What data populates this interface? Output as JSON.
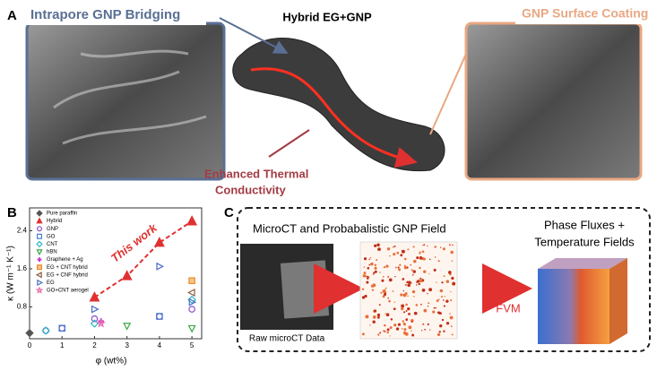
{
  "panel_a": {
    "label": "A",
    "left_title": "Intrapore GNP Bridging",
    "center_title": "Hybrid EG+GNP",
    "right_title": "GNP Surface Coating",
    "annotation": [
      "Enhanced Thermal",
      "Conductivity"
    ]
  },
  "chart_data": {
    "type": "scatter",
    "panel_label": "B",
    "x_label": "φ (wt%)",
    "y_label": "κ (W m⁻¹ K⁻¹)",
    "annotation": "This work",
    "xlim": [
      0,
      5.3
    ],
    "xticks": [
      0,
      1,
      2,
      3,
      4,
      5
    ],
    "ylim": [
      0.13,
      2.88
    ],
    "yticks": [
      0.8,
      1.6,
      2.4
    ],
    "series": [
      {
        "name": "Pure paraffin",
        "color": "#555555",
        "marker": "diamond",
        "x": [
          0
        ],
        "values": [
          0.25
        ]
      },
      {
        "name": "Hybrid",
        "color": "#e03030",
        "marker": "triangle",
        "line": "dashed",
        "x": [
          2,
          3,
          4,
          5
        ],
        "values": [
          1.0,
          1.45,
          2.15,
          2.6
        ]
      },
      {
        "name": "GNP",
        "color": "#8a4fc9",
        "marker": "circle",
        "x": [
          0.5,
          1,
          2,
          4,
          5
        ],
        "values": [
          0.3,
          0.35,
          0.55,
          0.6,
          0.75
        ]
      },
      {
        "name": "GO",
        "color": "#4a7fd0",
        "marker": "square",
        "x": [
          1,
          4
        ],
        "values": [
          0.35,
          0.6
        ]
      },
      {
        "name": "CNT",
        "color": "#2bb5c8",
        "marker": "diamond",
        "x": [
          0.5,
          2,
          5
        ],
        "values": [
          0.3,
          0.45,
          0.95
        ]
      },
      {
        "name": "hBN",
        "color": "#3aa845",
        "marker": "triangle-down",
        "x": [
          3,
          5
        ],
        "values": [
          0.4,
          0.35
        ]
      },
      {
        "name": "Graphene + Ag",
        "color": "#c83cc8",
        "marker": "plus",
        "x": [
          2.2
        ],
        "values": [
          0.5
        ]
      },
      {
        "name": "EG + CNT hybrid",
        "color": "#f08a24",
        "marker": "xsquare",
        "x": [
          5
        ],
        "values": [
          1.35
        ]
      },
      {
        "name": "EG + CNF hybrid",
        "color": "#8c5a3c",
        "marker": "triangle-left",
        "x": [
          5
        ],
        "values": [
          1.1
        ]
      },
      {
        "name": "EG",
        "color": "#4a6fc0",
        "marker": "triangle-right",
        "x": [
          2,
          4,
          5
        ],
        "values": [
          0.75,
          1.65,
          0.9
        ]
      },
      {
        "name": "GO+CNT aerogel",
        "color": "#e86aa8",
        "marker": "star",
        "x": [
          2.2
        ],
        "values": [
          0.45
        ]
      }
    ]
  },
  "panel_c": {
    "label": "C",
    "title": "MicroCT and Probabalistic GNP Field",
    "raw_caption": "Raw microCT Data",
    "method": "FVM",
    "result": [
      "Phase Fluxes +",
      "Temperature Fields"
    ]
  }
}
